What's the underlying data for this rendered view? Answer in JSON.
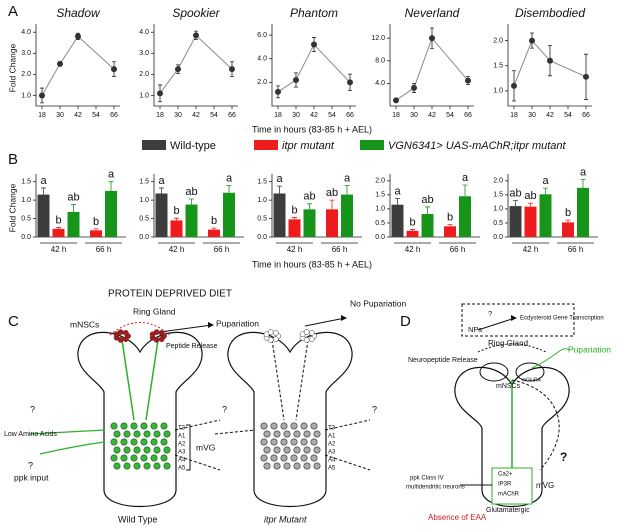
{
  "panels": [
    "A",
    "B",
    "C",
    "D"
  ],
  "legend": [
    {
      "name": "Wild-type",
      "color": "#3d3d3d"
    },
    {
      "name": "itpr mutant",
      "color": "#ee1c1c"
    },
    {
      "name": "VGN6341> UAS-mAChR;itpr mutant",
      "color": "#17951b"
    }
  ],
  "chart_data": [
    {
      "type": "line",
      "title": "Shadow",
      "ylabel": "Fold Change",
      "xlabel": "Time in hours (83-85 h + AEL)",
      "x": [
        18,
        30,
        42,
        66
      ],
      "values": [
        1.0,
        2.5,
        3.8,
        2.25
      ],
      "errors": [
        0.35,
        0.1,
        0.15,
        0.35
      ],
      "xlim": [
        14,
        70
      ],
      "xticks": [
        18,
        30,
        42,
        54,
        66
      ],
      "ylim": [
        0.5,
        4.2
      ],
      "yticks": [
        {
          "value": 1,
          "label": "1.0"
        },
        {
          "value": 2,
          "label": "2.0"
        },
        {
          "value": 3,
          "label": "3.0"
        },
        {
          "value": 4,
          "label": "4.0"
        }
      ],
      "color": "#8a8a8a"
    },
    {
      "type": "line",
      "title": "Spookier",
      "x": [
        18,
        30,
        42,
        66
      ],
      "values": [
        1.1,
        2.25,
        3.85,
        2.25
      ],
      "errors": [
        0.4,
        0.2,
        0.2,
        0.35
      ],
      "xlim": [
        14,
        70
      ],
      "xticks": [
        18,
        30,
        42,
        54,
        66
      ],
      "ylim": [
        0.5,
        4.2
      ],
      "yticks": [
        {
          "value": 1,
          "label": "1.0"
        },
        {
          "value": 2,
          "label": "2.0"
        },
        {
          "value": 3,
          "label": "3.0"
        },
        {
          "value": 4,
          "label": "4.0"
        }
      ],
      "color": "#8a8a8a"
    },
    {
      "type": "line",
      "title": "Phantom",
      "x": [
        18,
        30,
        42,
        66
      ],
      "values": [
        1.2,
        2.2,
        5.2,
        2.0
      ],
      "errors": [
        0.5,
        0.6,
        0.6,
        0.7
      ],
      "xlim": [
        14,
        70
      ],
      "xticks": [
        18,
        30,
        42,
        54,
        66
      ],
      "ylim": [
        0,
        6.6
      ],
      "yticks": [
        {
          "value": 2,
          "label": "2.0"
        },
        {
          "value": 4,
          "label": "4.0"
        },
        {
          "value": 6,
          "label": "6.0"
        }
      ],
      "color": "#8a8a8a"
    },
    {
      "type": "line",
      "title": "Neverland",
      "x": [
        18,
        30,
        42,
        66
      ],
      "values": [
        1.0,
        3.2,
        12.0,
        4.5
      ],
      "errors": [
        0.3,
        0.8,
        1.8,
        0.7
      ],
      "xlim": [
        14,
        70
      ],
      "xticks": [
        18,
        30,
        42,
        54,
        66
      ],
      "ylim": [
        0,
        13.8
      ],
      "yticks": [
        {
          "value": 4,
          "label": "4.0"
        },
        {
          "value": 8,
          "label": "8.0"
        },
        {
          "value": 12,
          "label": "12.0"
        }
      ],
      "color": "#8a8a8a"
    },
    {
      "type": "line",
      "title": "Disembodied",
      "x": [
        18,
        30,
        42,
        66
      ],
      "values": [
        1.1,
        2.0,
        1.6,
        1.28
      ],
      "errors": [
        0.3,
        0.15,
        0.3,
        0.45
      ],
      "xlim": [
        14,
        70
      ],
      "xticks": [
        18,
        30,
        42,
        54,
        66
      ],
      "ylim": [
        0.7,
        2.25
      ],
      "yticks": [
        {
          "value": 1,
          "label": "1.0"
        },
        1.5,
        {
          "value": 2,
          "label": "2.0"
        }
      ],
      "color": "#8a8a8a"
    },
    {
      "type": "bar",
      "ylabel": "Fold Change",
      "xlabel": "Time in hours (83-85 h + AEL)",
      "categories": [
        "42 h",
        "66 h"
      ],
      "ylim": [
        0,
        1.6
      ],
      "yticks": [
        {
          "value": 0,
          "label": "0.0"
        },
        0.5,
        {
          "value": 1,
          "label": "1.0"
        },
        1.5
      ],
      "series": [
        {
          "values": [
            1.15,
            null
          ],
          "errors": [
            0.18,
            null
          ],
          "annotations": [
            "a",
            null
          ]
        },
        {
          "values": [
            0.22,
            0.18
          ],
          "errors": [
            0.04,
            0.04
          ],
          "annotations": [
            "b",
            "b"
          ]
        },
        {
          "values": [
            0.68,
            1.25
          ],
          "errors": [
            0.2,
            0.25
          ],
          "annotations": [
            "ab",
            "a"
          ]
        }
      ]
    },
    {
      "type": "bar",
      "categories": [
        "42 h",
        "66 h"
      ],
      "ylim": [
        0,
        1.6
      ],
      "yticks": [
        {
          "value": 0,
          "label": "0.0"
        },
        0.5,
        {
          "value": 1,
          "label": "1.0"
        },
        1.5
      ],
      "series": [
        {
          "values": [
            1.18,
            null
          ],
          "errors": [
            0.15,
            null
          ],
          "annotations": [
            "a",
            null
          ]
        },
        {
          "values": [
            0.45,
            0.2
          ],
          "errors": [
            0.06,
            0.04
          ],
          "annotations": [
            "b",
            "b"
          ]
        },
        {
          "values": [
            0.88,
            1.2
          ],
          "errors": [
            0.15,
            0.2
          ],
          "annotations": [
            "ab",
            "a"
          ]
        }
      ]
    },
    {
      "type": "bar",
      "categories": [
        "42 h",
        "66 h"
      ],
      "ylim": [
        0,
        1.6
      ],
      "yticks": [
        {
          "value": 0,
          "label": "0.0"
        },
        0.5,
        {
          "value": 1,
          "label": "1.0"
        },
        1.5
      ],
      "series": [
        {
          "values": [
            1.18,
            null
          ],
          "errors": [
            0.2,
            null
          ],
          "annotations": [
            "a",
            null
          ]
        },
        {
          "values": [
            0.48,
            0.75
          ],
          "errors": [
            0.05,
            0.25
          ],
          "annotations": [
            "b",
            "ab"
          ]
        },
        {
          "values": [
            0.75,
            1.15
          ],
          "errors": [
            0.15,
            0.25
          ],
          "annotations": [
            "ab",
            "a"
          ]
        }
      ]
    },
    {
      "type": "bar",
      "categories": [
        "42 h",
        "66 h"
      ],
      "ylim": [
        0,
        2.1
      ],
      "yticks": [
        {
          "value": 0,
          "label": "0.0"
        },
        0.5,
        {
          "value": 1,
          "label": "1.0"
        },
        1.5,
        {
          "value": 2,
          "label": "2.0"
        }
      ],
      "series": [
        {
          "values": [
            1.15,
            null
          ],
          "errors": [
            0.22,
            null
          ],
          "annotations": [
            "a",
            null
          ]
        },
        {
          "values": [
            0.22,
            0.38
          ],
          "errors": [
            0.05,
            0.06
          ],
          "annotations": [
            "b",
            "b"
          ]
        },
        {
          "values": [
            0.82,
            1.45
          ],
          "errors": [
            0.25,
            0.4
          ],
          "annotations": [
            "ab",
            "a"
          ]
        }
      ]
    },
    {
      "type": "bar",
      "categories": [
        "42 h",
        "66 h"
      ],
      "ylim": [
        0,
        2.1
      ],
      "yticks": [
        {
          "value": 0,
          "label": "0.0"
        },
        0.5,
        {
          "value": 1,
          "label": "1.0"
        },
        1.5,
        {
          "value": 2,
          "label": "2.0"
        }
      ],
      "series": [
        {
          "values": [
            1.1,
            null
          ],
          "errors": [
            0.2,
            null
          ],
          "annotations": [
            "ab",
            null
          ]
        },
        {
          "values": [
            1.08,
            0.52
          ],
          "errors": [
            0.12,
            0.08
          ],
          "annotations": [
            "ab",
            "b"
          ]
        },
        {
          "values": [
            1.52,
            1.75
          ],
          "errors": [
            0.22,
            0.3
          ],
          "annotations": [
            "a",
            "a"
          ]
        }
      ]
    }
  ],
  "diagram_c": {
    "title": "PROTEIN DEPRIVED DIET",
    "labels": [
      "Ring Gland",
      "mNSCs",
      "Pupariation",
      "Peptide Release",
      "No Pupariation",
      "Low Amino Acids",
      "ppk input",
      "mVG",
      "Wild Type",
      "itpr Mutant",
      "?",
      "?",
      "?",
      "?"
    ],
    "segments": [
      "T3",
      "A1",
      "A2",
      "A3",
      "A4",
      "A5"
    ]
  },
  "diagram_d": {
    "labels": [
      "NPs",
      "?",
      "Ecdysteroid Gene Transcription",
      "Ring Gland",
      "Pupariation",
      "Neuropeptide Release",
      "mNSCs",
      "mGluRA",
      "ppk Class IV",
      "multidendritic neurons",
      "Ca2+",
      "IP3R",
      "mAChR",
      "mVG",
      "Glutamatergic",
      "Absence of EAA",
      "?"
    ]
  }
}
